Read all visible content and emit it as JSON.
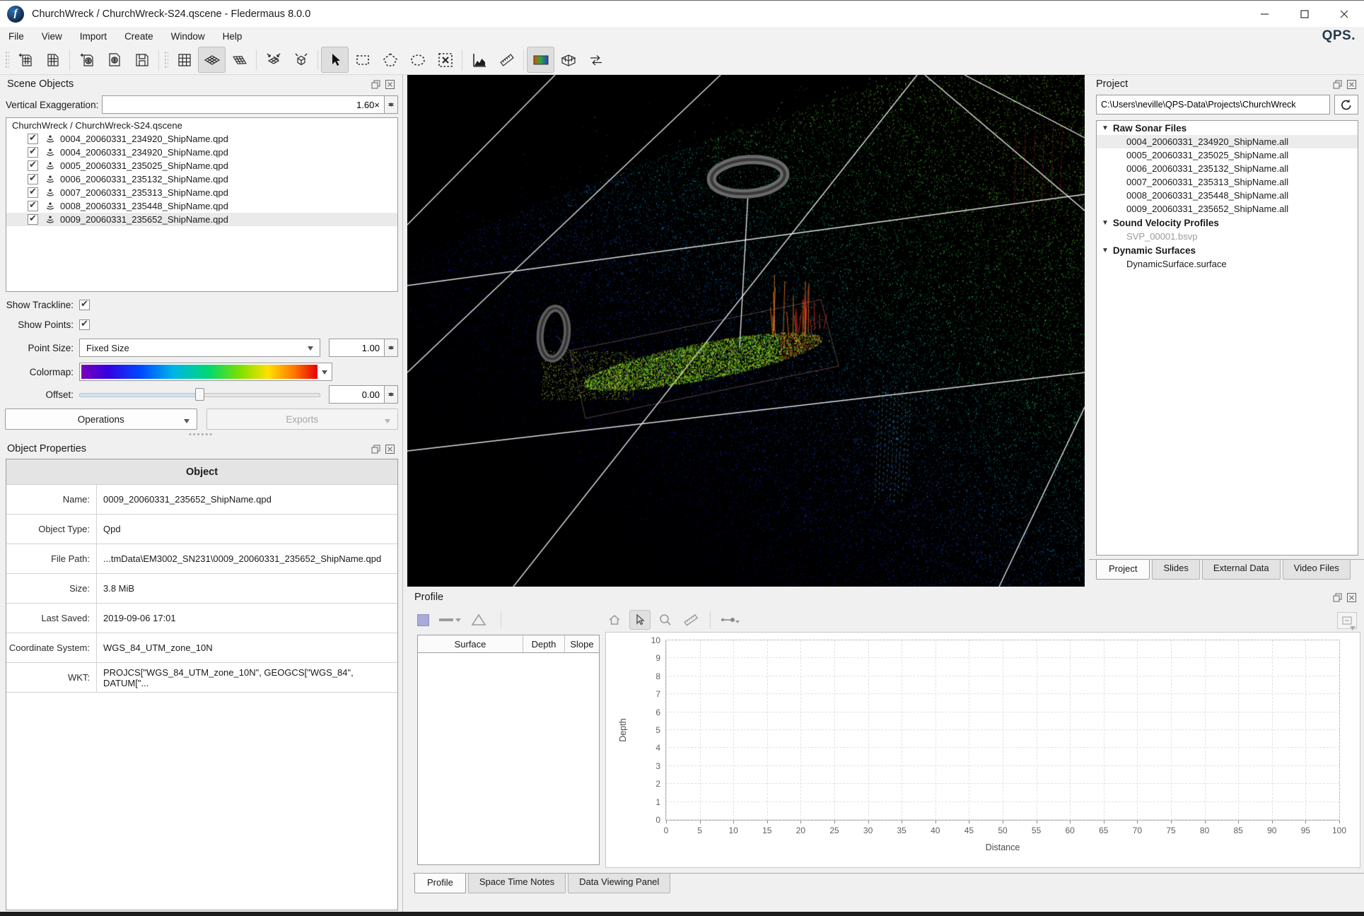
{
  "window": {
    "title": "ChurchWreck / ChurchWreck-S24.qscene - Fledermaus 8.0.0",
    "app_icon": "fledermaus-logo"
  },
  "menu": {
    "items": [
      "File",
      "View",
      "Import",
      "Create",
      "Window",
      "Help"
    ],
    "brand": "QPS."
  },
  "toolbar": {
    "buttons": [
      "new-scene",
      "open-scene",
      "import-source-file",
      "import-object-file",
      "save",
      "grid-view",
      "flat-surface-view",
      "rotated-surface-view",
      "fit-to-grid",
      "bounding-box",
      "select-cursor",
      "rectangle-select",
      "polygon-select",
      "lasso-select",
      "clear-selection",
      "profile-tool",
      "measure-tool",
      "colormap-tool",
      "mesh-tool",
      "swap-views"
    ],
    "selected": [
      "flat-surface-view",
      "select-cursor",
      "colormap-tool"
    ]
  },
  "scene_objects": {
    "title": "Scene Objects",
    "vertical_exaggeration_label": "Vertical Exaggeration:",
    "vertical_exaggeration_value": "1.60×",
    "tree_root": "ChurchWreck / ChurchWreck-S24.qscene",
    "items": [
      {
        "label": "0004_20060331_234920_ShipName.qpd",
        "checked": true
      },
      {
        "label": "0004_20060331_234920_ShipName.qpd",
        "checked": true
      },
      {
        "label": "0005_20060331_235025_ShipName.qpd",
        "checked": true
      },
      {
        "label": "0006_20060331_235132_ShipName.qpd",
        "checked": true
      },
      {
        "label": "0007_20060331_235313_ShipName.qpd",
        "checked": true
      },
      {
        "label": "0008_20060331_235448_ShipName.qpd",
        "checked": true
      },
      {
        "label": "0009_20060331_235652_ShipName.qpd",
        "checked": true,
        "selected": true
      }
    ],
    "show_trackline_label": "Show Trackline:",
    "show_trackline_checked": true,
    "show_points_label": "Show Points:",
    "show_points_checked": true,
    "point_size_label": "Point Size:",
    "point_size_value": "Fixed Size",
    "point_size_number": "1.00",
    "colormap_label": "Colormap:",
    "colormap_name": "rainbow-gradient",
    "offset_label": "Offset:",
    "offset_value": "0.00",
    "operations_label": "Operations",
    "exports_label": "Exports"
  },
  "object_properties": {
    "title": "Object Properties",
    "table_header": "Object",
    "rows": [
      {
        "label": "Name:",
        "value": "0009_20060331_235652_ShipName.qpd"
      },
      {
        "label": "Object Type:",
        "value": "Qpd"
      },
      {
        "label": "File Path:",
        "value": "...tmData\\EM3002_SN231\\0009_20060331_235652_ShipName.qpd"
      },
      {
        "label": "Size:",
        "value": "3.8 MiB"
      },
      {
        "label": "Last Saved:",
        "value": "2019-09-06 17:01"
      },
      {
        "label": "Coordinate System:",
        "value": "WGS_84_UTM_zone_10N"
      },
      {
        "label": "WKT:",
        "value": "PROJCS[\"WGS_84_UTM_zone_10N\", GEOGCS[\"WGS_84\", DATUM[\"..."
      }
    ]
  },
  "project": {
    "title": "Project",
    "path": "C:\\Users\\neville\\QPS-Data\\Projects\\ChurchWreck",
    "groups": [
      {
        "label": "Raw Sonar Files",
        "items": [
          "0004_20060331_234920_ShipName.all",
          "0005_20060331_235025_ShipName.all",
          "0006_20060331_235132_ShipName.all",
          "0007_20060331_235313_ShipName.all",
          "0008_20060331_235448_ShipName.all",
          "0009_20060331_235652_ShipName.all"
        ],
        "selected_index": 0
      },
      {
        "label": "Sound Velocity Profiles",
        "items": [
          "SVP_00001.bsvp"
        ],
        "muted": true
      },
      {
        "label": "Dynamic Surfaces",
        "items": [
          "DynamicSurface.surface"
        ]
      }
    ],
    "tabs": [
      "Project",
      "Slides",
      "External Data",
      "Video Files"
    ],
    "active_tab": "Project"
  },
  "profile": {
    "title": "Profile",
    "toolbar": [
      "color-swatch",
      "line-style",
      "triangle-marker",
      "home-view",
      "cursor-select",
      "zoom",
      "measure",
      "point-series",
      "legend"
    ],
    "toolbar_selected": [
      "cursor-select"
    ],
    "table_columns": [
      "Surface",
      "Depth",
      "Slope"
    ],
    "tabs": [
      "Profile",
      "Space Time Notes",
      "Data Viewing Panel"
    ],
    "active_tab": "Profile"
  },
  "chart_data": {
    "type": "line",
    "title": "",
    "xlabel": "Distance",
    "ylabel": "Depth",
    "xlim": [
      0,
      100
    ],
    "ylim": [
      0,
      10
    ],
    "x_ticks": [
      0,
      5,
      10,
      15,
      20,
      25,
      30,
      35,
      40,
      45,
      50,
      55,
      60,
      65,
      70,
      75,
      80,
      85,
      90,
      95,
      100
    ],
    "y_ticks": [
      0,
      1,
      2,
      3,
      4,
      5,
      6,
      7,
      8,
      9,
      10
    ],
    "grid": true,
    "series": []
  }
}
